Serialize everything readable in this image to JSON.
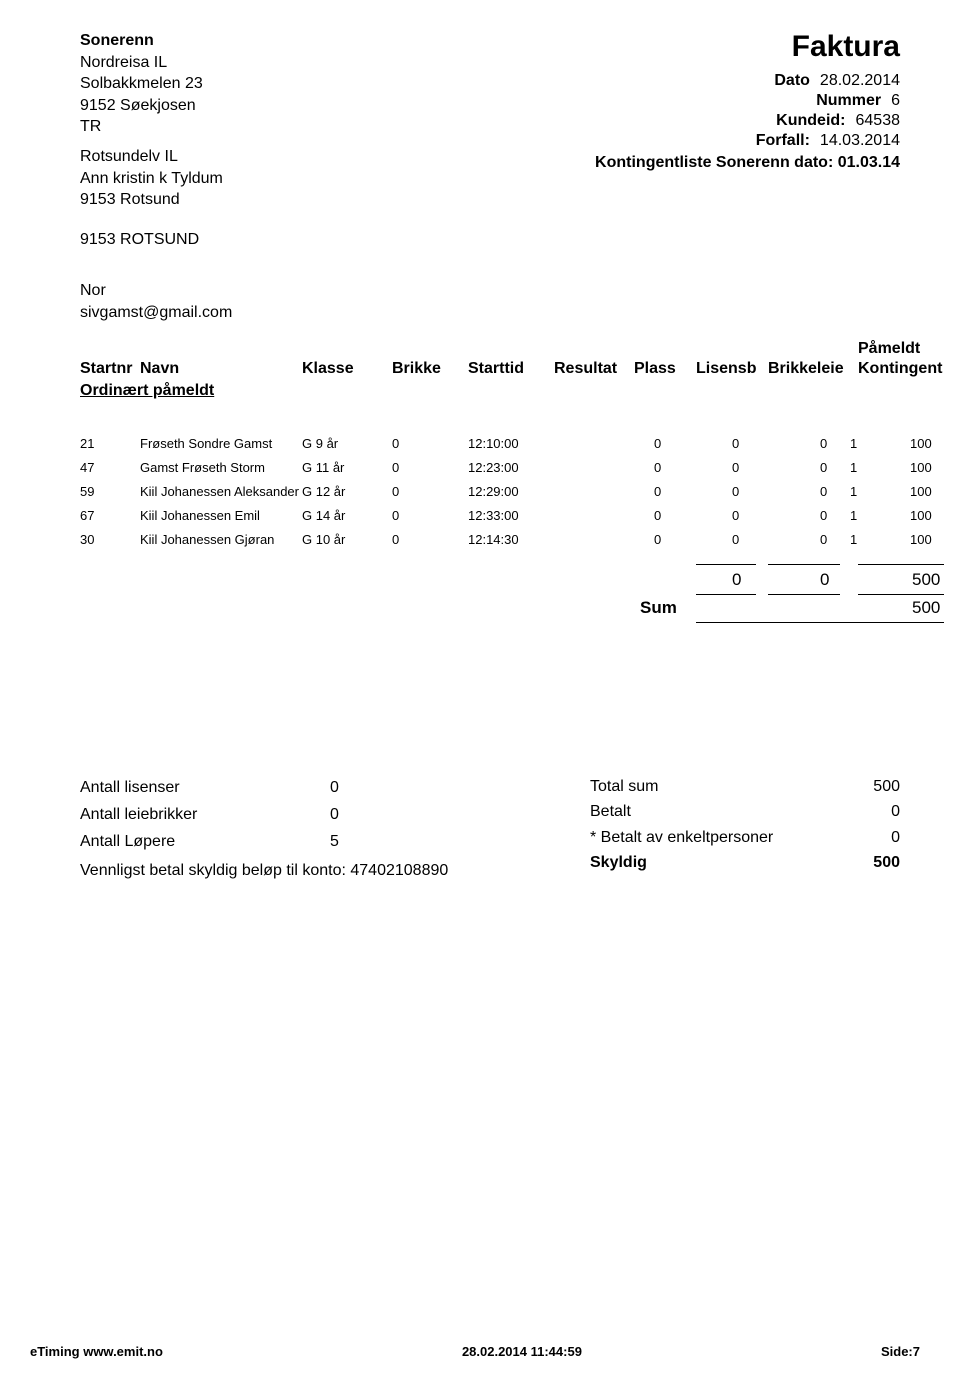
{
  "sender": {
    "org": "Sonerenn",
    "club": "Nordreisa IL",
    "addr1": "Solbakkmelen 23",
    "addr2": "9152 Søekjosen",
    "addr3": "TR"
  },
  "recipient": {
    "line1": "Rotsundelv IL",
    "line2": "Ann kristin k Tyldum",
    "line3": "9153 Rotsund",
    "line4": "9153  ROTSUND"
  },
  "doc": {
    "title": "Faktura",
    "dato_lbl": "Dato",
    "dato_val": "28.02.2014",
    "nummer_lbl": "Nummer",
    "nummer_val": "6",
    "kundeid_lbl": "Kundeid:",
    "kundeid_val": "64538",
    "forfall_lbl": "Forfall:",
    "forfall_val": "14.03.2014",
    "kont_line": "Kontingentliste  Sonerenn dato: 01.03.14"
  },
  "contact": {
    "country": "Nor",
    "email": "sivgamst@gmail.com"
  },
  "headers": {
    "startnr": "Startnr",
    "navn": "Navn",
    "klasse": "Klasse",
    "brikke": "Brikke",
    "starttid": "Starttid",
    "resultat": "Resultat",
    "plass": "Plass",
    "lisensb": "Lisensb",
    "brikkeleie": "Brikkeleie",
    "pameldt": "Påmeldt",
    "kontingent": "Kontingent"
  },
  "section": "Ordinært påmeldt",
  "rows": [
    {
      "nr": "21",
      "navn": "Frøseth Sondre Gamst",
      "klasse": "G 9 år",
      "brikke": "0",
      "starttid": "12:10:00",
      "resultat": "",
      "plass": "0",
      "lis": "0",
      "brk": "0",
      "a": "1",
      "kont": "100"
    },
    {
      "nr": "47",
      "navn": "Gamst Frøseth Storm",
      "klasse": "G 11 år",
      "brikke": "0",
      "starttid": "12:23:00",
      "resultat": "",
      "plass": "0",
      "lis": "0",
      "brk": "0",
      "a": "1",
      "kont": "100"
    },
    {
      "nr": "59",
      "navn": "Kiil Johanessen Aleksander",
      "klasse": "G 12 år",
      "brikke": "0",
      "starttid": "12:29:00",
      "resultat": "",
      "plass": "0",
      "lis": "0",
      "brk": "0",
      "a": "1",
      "kont": "100"
    },
    {
      "nr": "67",
      "navn": "Kiil Johanessen Emil",
      "klasse": "G 14 år",
      "brikke": "0",
      "starttid": "12:33:00",
      "resultat": "",
      "plass": "0",
      "lis": "0",
      "brk": "0",
      "a": "1",
      "kont": "100"
    },
    {
      "nr": "30",
      "navn": "Kiil Johanessen Gjøran",
      "klasse": "G 10 år",
      "brikke": "0",
      "starttid": "12:14:30",
      "resultat": "",
      "plass": "0",
      "lis": "0",
      "brk": "0",
      "a": "1",
      "kont": "100"
    }
  ],
  "totals": {
    "t1_a": "0",
    "t1_b": "0",
    "t1_c": "500",
    "sum_lbl": "Sum",
    "sum_val": "500"
  },
  "summary_left": {
    "lisenser_lbl": "Antall lisenser",
    "lisenser_val": "0",
    "leiebrikker_lbl": "Antall leiebrikker",
    "leiebrikker_val": "0",
    "lopere_lbl": "Antall Løpere",
    "lopere_val": "5",
    "pay_prefix": "Vennligst betal skyldig beløp til konto: ",
    "konto": "47402108890"
  },
  "summary_right": {
    "total_lbl": "Total sum",
    "total_val": "500",
    "betalt_lbl": "Betalt",
    "betalt_val": "0",
    "enkel_lbl": "* Betalt av enkeltpersoner",
    "enkel_val": "0",
    "skyldig_lbl": "Skyldig",
    "skyldig_val": "500"
  },
  "footer": {
    "left": "eTiming www.emit.no",
    "center": "28.02.2014 11:44:59",
    "right": "Side:7"
  },
  "colpos": {
    "nr": 0,
    "navn": 60,
    "klasse": 222,
    "brikke": 312,
    "starttid": 388,
    "resultat": 474,
    "plass": 554,
    "lisensb": 616,
    "brikkeleie": 688,
    "kontingent": 778
  }
}
